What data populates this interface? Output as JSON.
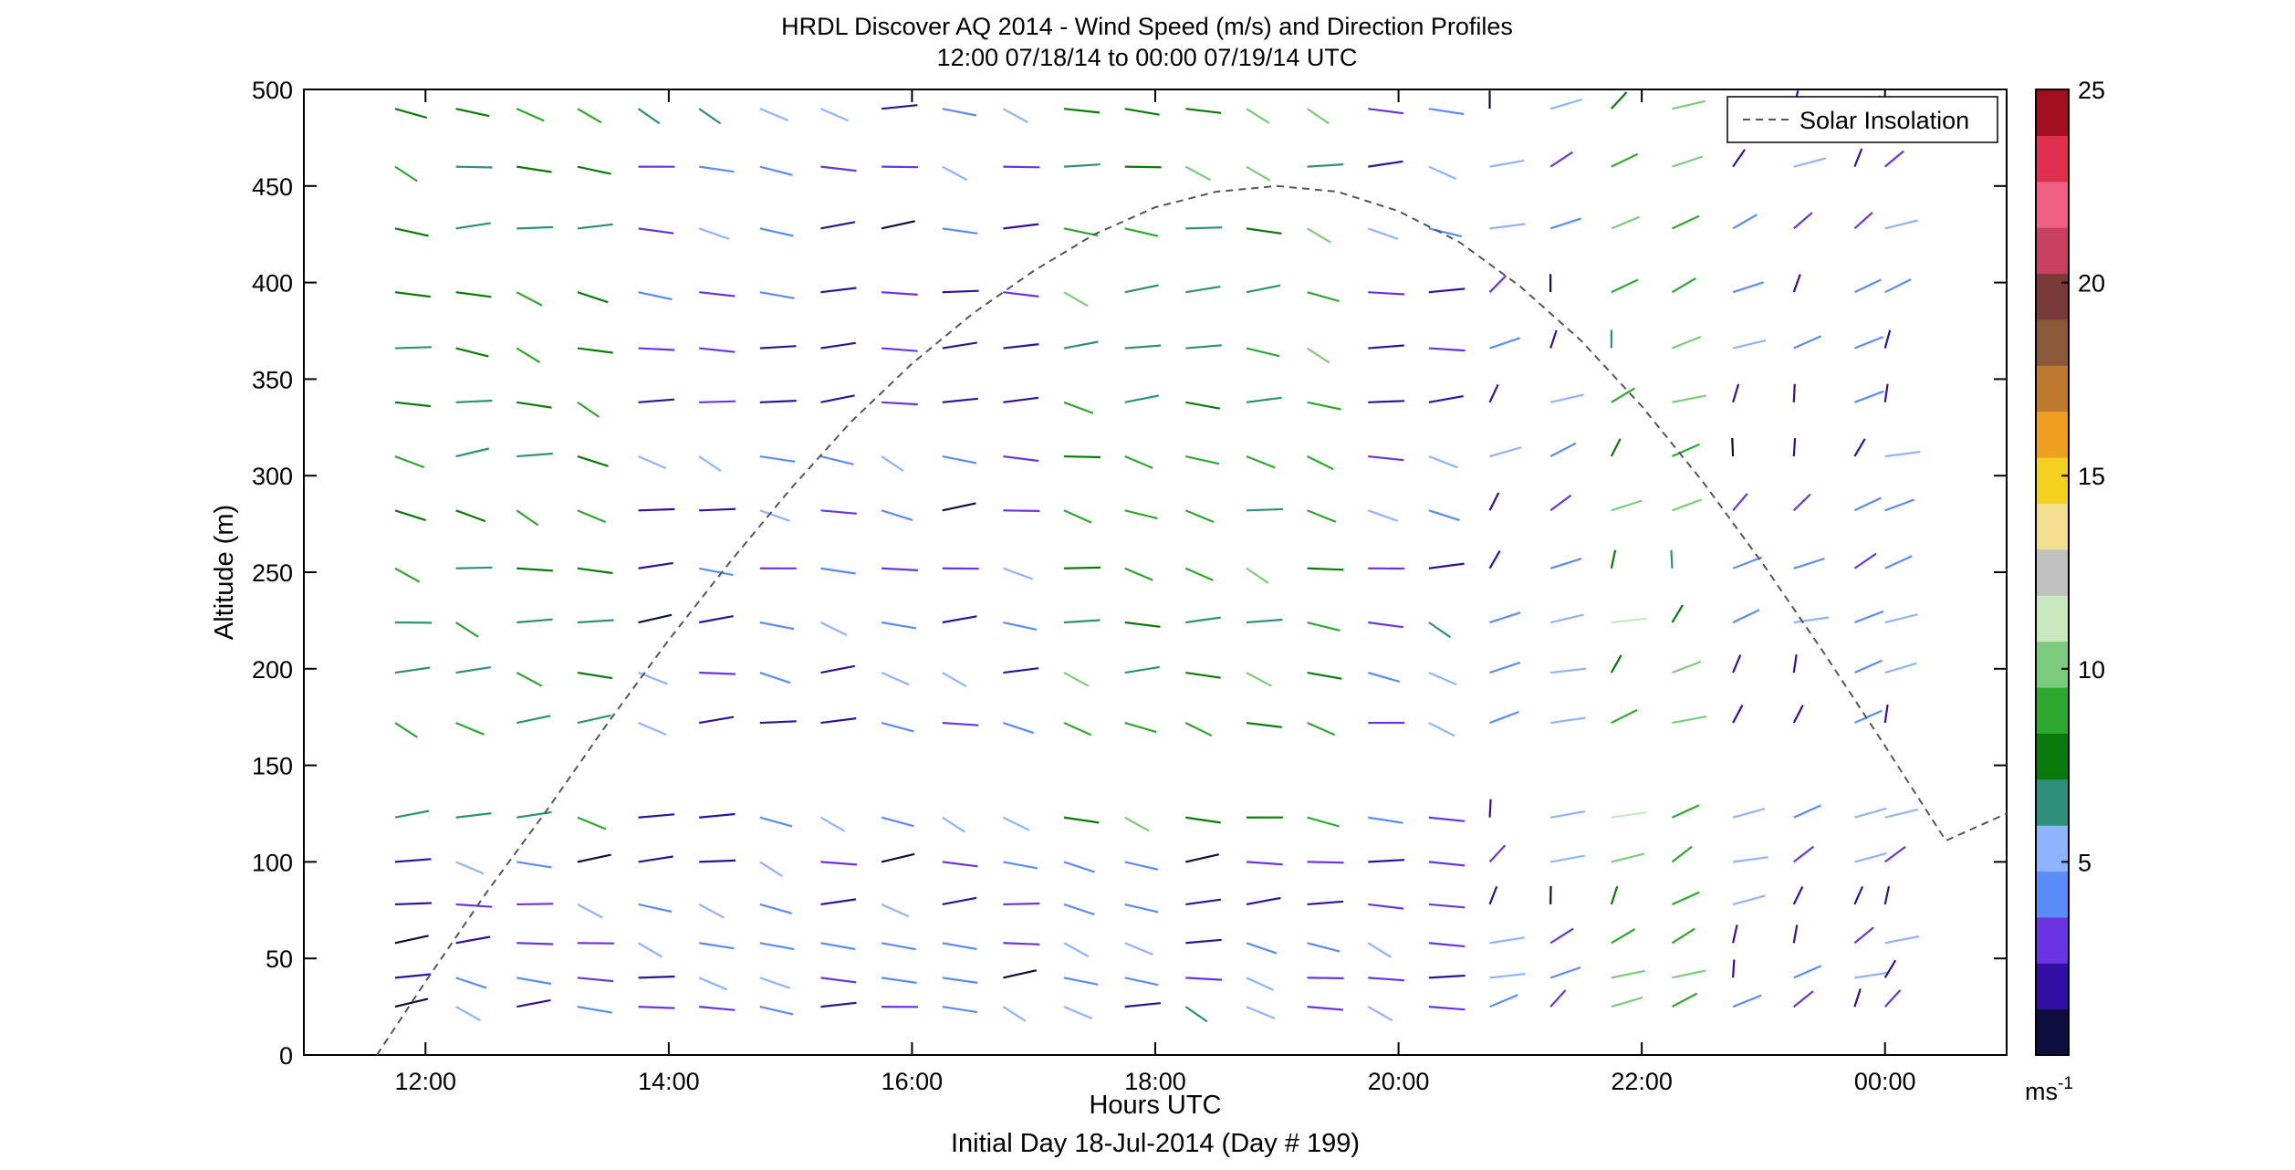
{
  "chart_data": {
    "type": "wind-barb-profile",
    "title": "HRDL Discover AQ 2014 - Wind Speed (m/s) and Direction Profiles",
    "subtitle": "12:00 07/18/14 to 00:00 07/19/14  UTC",
    "xlabel": "Hours UTC",
    "xlabel2": "Initial Day 18-Jul-2014 (Day # 199)",
    "ylabel": "Altitude (m)",
    "xlim": [
      11.0,
      25.0
    ],
    "ylim": [
      0,
      500
    ],
    "x_ticks": [
      12,
      14,
      16,
      18,
      20,
      22,
      24
    ],
    "x_tick_labels": [
      "12:00",
      "14:00",
      "16:00",
      "18:00",
      "20:00",
      "22:00",
      "00:00"
    ],
    "y_ticks": [
      0,
      50,
      100,
      150,
      200,
      250,
      300,
      350,
      400,
      450,
      500
    ],
    "y_tick_labels": [
      "0",
      "50",
      "100",
      "150",
      "200",
      "250",
      "300",
      "350",
      "400",
      "450",
      "500"
    ],
    "legend": {
      "entries": [
        "Solar Insolation"
      ],
      "placement": "top-right"
    },
    "colorbar": {
      "range": [
        0,
        25
      ],
      "ticks": [
        5,
        10,
        15,
        20,
        25
      ],
      "tick_labels": [
        "5",
        "10",
        "15",
        "20",
        "25"
      ],
      "unit_label": "ms",
      "unit_exponent": "-1",
      "colors": [
        "#0d0d40",
        "#3010a0",
        "#6a34e0",
        "#5a8cf8",
        "#8fb4ff",
        "#2e8f7a",
        "#0a7a0a",
        "#2fa82f",
        "#7ccb7c",
        "#c8e8c0",
        "#c0c0c0",
        "#f2e090",
        "#f4d020",
        "#f0a020",
        "#c07a30",
        "#8a5a38",
        "#7a3a3a",
        "#c84060",
        "#f06080",
        "#e03050",
        "#a01020"
      ]
    },
    "solar_insolation": {
      "x": [
        11.6,
        12.0,
        12.5,
        13.0,
        13.5,
        14.0,
        14.5,
        15.0,
        15.5,
        16.0,
        16.5,
        17.0,
        17.5,
        18.0,
        18.5,
        19.0,
        19.5,
        20.0,
        20.5,
        21.0,
        21.5,
        22.0,
        22.5,
        23.0,
        23.5,
        24.0,
        24.5,
        25.0
      ],
      "y": [
        0,
        38,
        84,
        127,
        172,
        215,
        255,
        293,
        328,
        358,
        384,
        406,
        425,
        439,
        447,
        450,
        447,
        437,
        421,
        398,
        370,
        336,
        297,
        254,
        208,
        160,
        111,
        125
      ]
    },
    "wind_barbs": {
      "times": [
        11.75,
        12.25,
        12.75,
        13.25,
        13.75,
        14.25,
        14.75,
        15.25,
        15.75,
        16.25,
        16.75,
        17.25,
        17.75,
        18.25,
        18.75,
        19.25,
        19.75,
        20.25,
        20.75,
        21.25,
        21.75,
        22.25,
        22.75,
        23.25,
        23.75,
        24.0
      ],
      "levels": [
        25,
        40,
        58,
        78,
        100,
        123,
        172,
        198,
        224,
        252,
        282,
        310,
        338,
        366,
        395,
        428,
        460,
        490
      ],
      "note": "Wind direction and speed shown as line segments; colors encode speed."
    }
  }
}
